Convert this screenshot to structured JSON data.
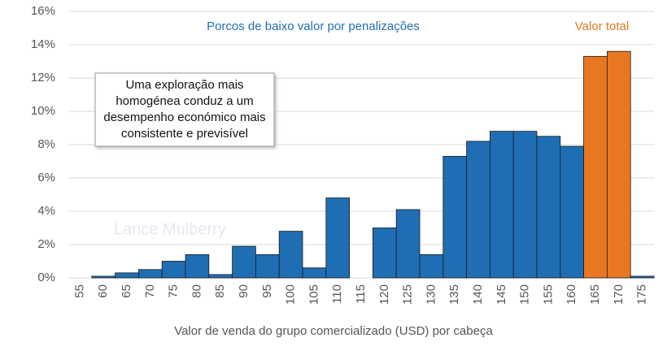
{
  "chart_data": {
    "type": "bar",
    "x_label": "Valor de venda do grupo comercializado (USD) por cabeça",
    "categories": [
      "55",
      "60",
      "65",
      "70",
      "75",
      "80",
      "85",
      "90",
      "95",
      "100",
      "105",
      "110",
      "115",
      "120",
      "125",
      "130",
      "135",
      "140",
      "145",
      "150",
      "155",
      "160",
      "165",
      "170",
      "175"
    ],
    "values": [
      0,
      0.1,
      0.3,
      0.5,
      1.0,
      1.4,
      0.2,
      1.9,
      1.4,
      2.8,
      0.6,
      4.8,
      0,
      3.0,
      4.1,
      1.4,
      7.3,
      8.2,
      8.8,
      8.8,
      8.5,
      7.9,
      13.3,
      13.6,
      0.1
    ],
    "colors": [
      "#1f6eb4",
      "#1f6eb4",
      "#1f6eb4",
      "#1f6eb4",
      "#1f6eb4",
      "#1f6eb4",
      "#1f6eb4",
      "#1f6eb4",
      "#1f6eb4",
      "#1f6eb4",
      "#1f6eb4",
      "#1f6eb4",
      "#1f6eb4",
      "#1f6eb4",
      "#1f6eb4",
      "#1f6eb4",
      "#1f6eb4",
      "#1f6eb4",
      "#1f6eb4",
      "#1f6eb4",
      "#1f6eb4",
      "#1f6eb4",
      "#e87722",
      "#e87722",
      "#1f6eb4"
    ],
    "ylim": [
      0,
      16
    ],
    "yticks": [
      {
        "value": 0,
        "label": "0%"
      },
      {
        "value": 2,
        "label": "2%"
      },
      {
        "value": 4,
        "label": "4%"
      },
      {
        "value": 6,
        "label": "6%"
      },
      {
        "value": 8,
        "label": "8%"
      },
      {
        "value": 10,
        "label": "10%"
      },
      {
        "value": 12,
        "label": "12%"
      },
      {
        "value": 14,
        "label": "14%"
      },
      {
        "value": 16,
        "label": "16%"
      }
    ],
    "grid": true,
    "annotations": {
      "low_value": "Porcos de baixo valor por penalizações",
      "total_value": "Valor total",
      "note": [
        "Uma exploração mais",
        "homogénea conduz a um",
        "desempenho económico mais",
        "consistente e previsível"
      ],
      "watermark": "Lance Mulberry"
    }
  }
}
